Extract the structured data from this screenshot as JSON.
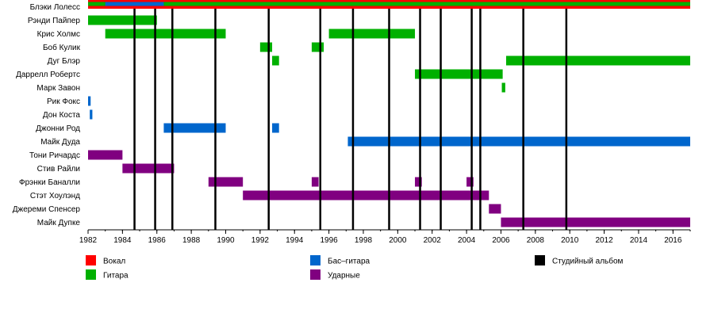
{
  "chart_data": {
    "type": "timeline",
    "x_axis": {
      "min": 1982,
      "max": 2017,
      "ticks": [
        1982,
        1984,
        1986,
        1988,
        1990,
        1992,
        1994,
        1996,
        1998,
        2000,
        2002,
        2004,
        2006,
        2008,
        2010,
        2012,
        2014,
        2016
      ]
    },
    "colors": {
      "vocals": "#ff0000",
      "guitar": "#00b000",
      "bass": "#0066cc",
      "drums": "#800080",
      "album": "#000000"
    },
    "legend": [
      {
        "key": "vocals",
        "label": "Вокал"
      },
      {
        "key": "guitar",
        "label": "Гитара"
      },
      {
        "key": "bass",
        "label": "Бас–гитара"
      },
      {
        "key": "drums",
        "label": "Ударные"
      },
      {
        "key": "album",
        "label": "Студийный альбом"
      }
    ],
    "studio_albums": [
      1984.7,
      1985.9,
      1986.9,
      1989.4,
      1992.5,
      1995.5,
      1997.4,
      1999.5,
      2001.3,
      2002.5,
      2004.3,
      2004.8,
      2007.3,
      2009.8
    ],
    "members": [
      {
        "name": "Блэки Лолесс",
        "roles": [
          {
            "role": "vocals",
            "start": 1982,
            "end": 2017
          },
          {
            "role": "guitar",
            "start": 1982,
            "end": 2017
          },
          {
            "role": "bass",
            "start": 1983,
            "end": 1986.4
          }
        ]
      },
      {
        "name": "Рэнди Пайпер",
        "roles": [
          {
            "role": "guitar",
            "start": 1982,
            "end": 1986
          }
        ]
      },
      {
        "name": "Крис Холмс",
        "roles": [
          {
            "role": "guitar",
            "start": 1983,
            "end": 1990
          },
          {
            "role": "guitar",
            "start": 1996,
            "end": 2001
          }
        ]
      },
      {
        "name": "Боб Кулик",
        "roles": [
          {
            "role": "guitar",
            "start": 1992,
            "end": 1992.7
          },
          {
            "role": "guitar",
            "start": 1995,
            "end": 1995.7
          }
        ]
      },
      {
        "name": "Дуг Блэр",
        "roles": [
          {
            "role": "guitar",
            "start": 1992.7,
            "end": 1993.1
          },
          {
            "role": "guitar",
            "start": 2006.3,
            "end": 2017
          }
        ]
      },
      {
        "name": "Даррелл Робертс",
        "roles": [
          {
            "role": "guitar",
            "start": 2001,
            "end": 2006.1
          }
        ]
      },
      {
        "name": "Марк Завон",
        "roles": [
          {
            "role": "guitar",
            "start": 2006.05,
            "end": 2006.25
          }
        ]
      },
      {
        "name": "Рик Фокс",
        "roles": [
          {
            "role": "bass",
            "start": 1982,
            "end": 1982.15
          }
        ]
      },
      {
        "name": "Дон Коста",
        "roles": [
          {
            "role": "bass",
            "start": 1982.1,
            "end": 1982.25
          }
        ]
      },
      {
        "name": "Джонни Род",
        "roles": [
          {
            "role": "bass",
            "start": 1986.4,
            "end": 1990
          },
          {
            "role": "bass",
            "start": 1992.7,
            "end": 1993.1
          }
        ]
      },
      {
        "name": "Майк Дуда",
        "roles": [
          {
            "role": "bass",
            "start": 1997.1,
            "end": 2017
          }
        ]
      },
      {
        "name": "Тони Ричардс",
        "roles": [
          {
            "role": "drums",
            "start": 1982,
            "end": 1984
          }
        ]
      },
      {
        "name": "Стив Райли",
        "roles": [
          {
            "role": "drums",
            "start": 1984,
            "end": 1987
          }
        ]
      },
      {
        "name": "Фрэнки Баналли",
        "roles": [
          {
            "role": "drums",
            "start": 1989,
            "end": 1991
          },
          {
            "role": "drums",
            "start": 1995,
            "end": 1995.4
          },
          {
            "role": "drums",
            "start": 2001,
            "end": 2001.4
          },
          {
            "role": "drums",
            "start": 2004,
            "end": 2004.4
          }
        ]
      },
      {
        "name": "Стэт Хоулэнд",
        "roles": [
          {
            "role": "drums",
            "start": 1991,
            "end": 2005.3
          }
        ]
      },
      {
        "name": "Джереми Спенсер",
        "roles": [
          {
            "role": "drums",
            "start": 2005.3,
            "end": 2006
          }
        ]
      },
      {
        "name": "Майк Дупке",
        "roles": [
          {
            "role": "drums",
            "start": 2006,
            "end": 2017
          }
        ]
      }
    ]
  }
}
